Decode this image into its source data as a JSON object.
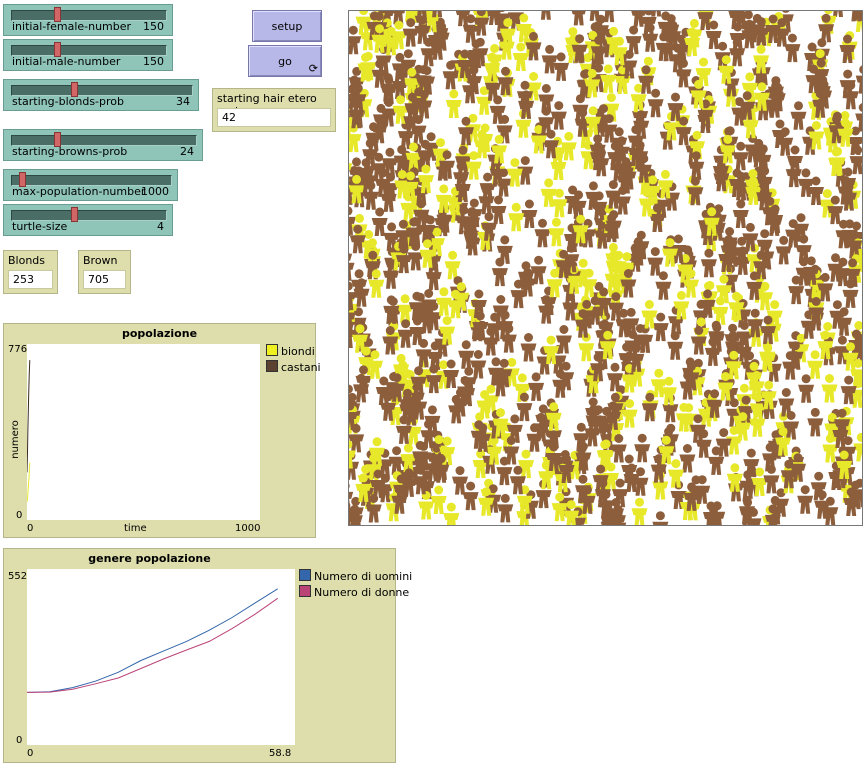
{
  "sliders": [
    {
      "id": "initial-female-number",
      "label": "initial-female-number",
      "value": "150",
      "fraction": 0.29
    },
    {
      "id": "initial-male-number",
      "label": "initial-male-number",
      "value": "150",
      "fraction": 0.29
    },
    {
      "id": "starting-blonds-prob",
      "label": "starting-blonds-prob",
      "value": "34",
      "fraction": 0.34
    },
    {
      "id": "starting-browns-prob",
      "label": "starting-browns-prob",
      "value": "24",
      "fraction": 0.24
    },
    {
      "id": "max-population-number",
      "label": "max-population-number",
      "value": "1000",
      "fraction": 0.05
    },
    {
      "id": "turtle-size",
      "label": "turtle-size",
      "value": "4",
      "fraction": 0.4
    }
  ],
  "buttons": {
    "setup": "setup",
    "go": "go"
  },
  "input": {
    "label": "starting hair etero prob",
    "value": "42"
  },
  "monitors": {
    "blonds": {
      "label": "Blonds",
      "value": "253"
    },
    "brown": {
      "label": "Brown",
      "value": "705"
    }
  },
  "plot1": {
    "title": "popolazione",
    "xlabel": "time",
    "ylabel": "numero",
    "xmin": "0",
    "xmax": "1000",
    "ymin": "0",
    "ymax": "776",
    "legend": [
      {
        "name": "biondi",
        "color": "#f0f020"
      },
      {
        "name": "castani",
        "color": "#5c4330"
      }
    ]
  },
  "plot2": {
    "title": "genere popolazione",
    "xmin": "0",
    "xmax": "58.8",
    "ymin": "0",
    "ymax": "552",
    "legend": [
      {
        "name": "Numero di uomini",
        "color": "#3366aa"
      },
      {
        "name": "Numero di donne",
        "color": "#bb4477"
      }
    ]
  },
  "chart_data": [
    {
      "type": "line",
      "title": "popolazione",
      "xlabel": "time",
      "ylabel": "numero",
      "xlim": [
        0,
        1000
      ],
      "ylim": [
        0,
        776
      ],
      "series": [
        {
          "name": "biondi",
          "color": "#e8e830",
          "x": [
            0,
            2,
            4,
            6,
            8,
            10,
            12
          ],
          "values": [
            80,
            95,
            120,
            150,
            180,
            215,
            253
          ]
        },
        {
          "name": "castani",
          "color": "#3a2a20",
          "x": [
            0,
            2,
            4,
            6,
            8,
            10,
            12
          ],
          "values": [
            210,
            300,
            400,
            500,
            590,
            650,
            705
          ]
        }
      ]
    },
    {
      "type": "line",
      "title": "genere popolazione",
      "xlim": [
        0,
        58.8
      ],
      "ylim": [
        0,
        552
      ],
      "series": [
        {
          "name": "Numero di uomini",
          "color": "#3366aa",
          "x": [
            0,
            5,
            10,
            15,
            20,
            25,
            30,
            35,
            40,
            45,
            50,
            55
          ],
          "values": [
            165,
            167,
            180,
            200,
            228,
            265,
            295,
            325,
            360,
            400,
            445,
            490
          ]
        },
        {
          "name": "Numero di donne",
          "color": "#bb4477",
          "x": [
            0,
            5,
            10,
            15,
            20,
            25,
            30,
            35,
            40,
            45,
            50,
            55
          ],
          "values": [
            165,
            166,
            175,
            192,
            210,
            240,
            270,
            298,
            325,
            365,
            410,
            460
          ]
        }
      ]
    }
  ]
}
